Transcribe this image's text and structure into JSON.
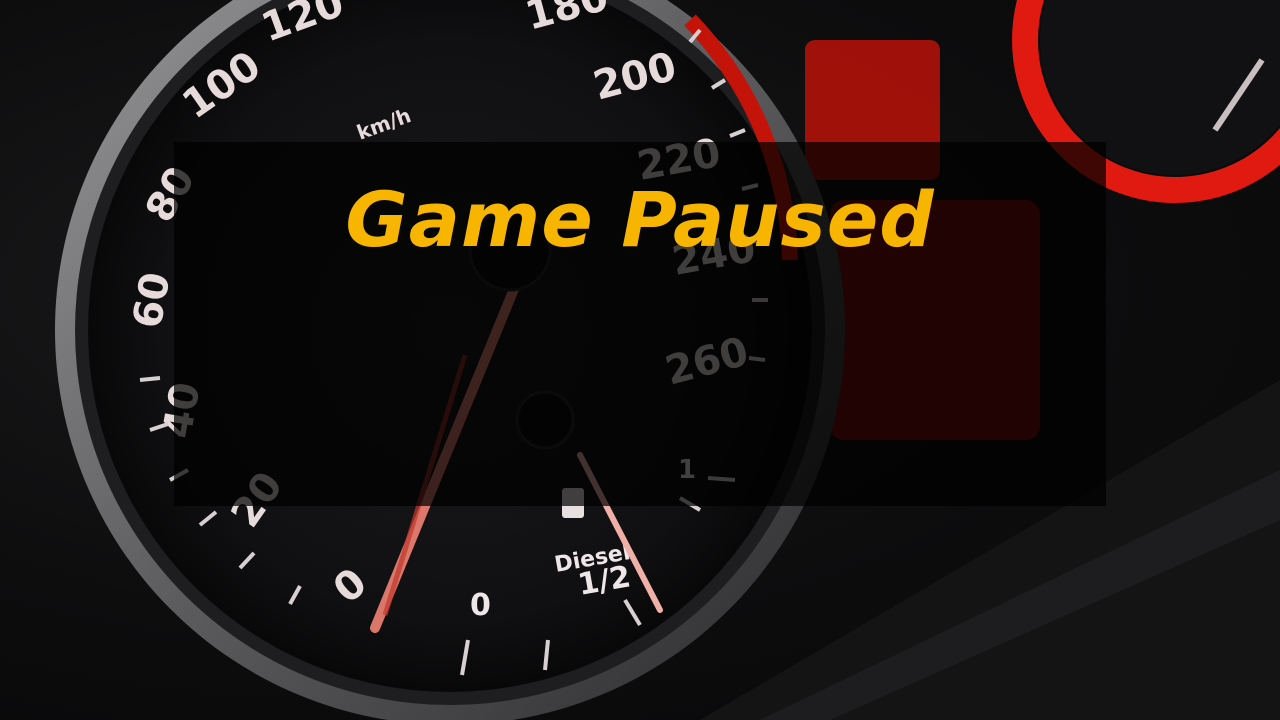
{
  "pause_screen": {
    "title": "Game Paused",
    "title_color": "#f7b500"
  },
  "background": {
    "description_icon": "speedometer-dashboard",
    "speed_labels": [
      "120",
      "100",
      "80",
      "60",
      "40",
      "20",
      "0",
      "180",
      "200",
      "220",
      "240",
      "260"
    ],
    "speed_unit": "km/h",
    "fuel_labels": [
      "0",
      "1/2",
      "1"
    ],
    "fuel_type": "Diesel",
    "accent_red": "#d81818"
  }
}
